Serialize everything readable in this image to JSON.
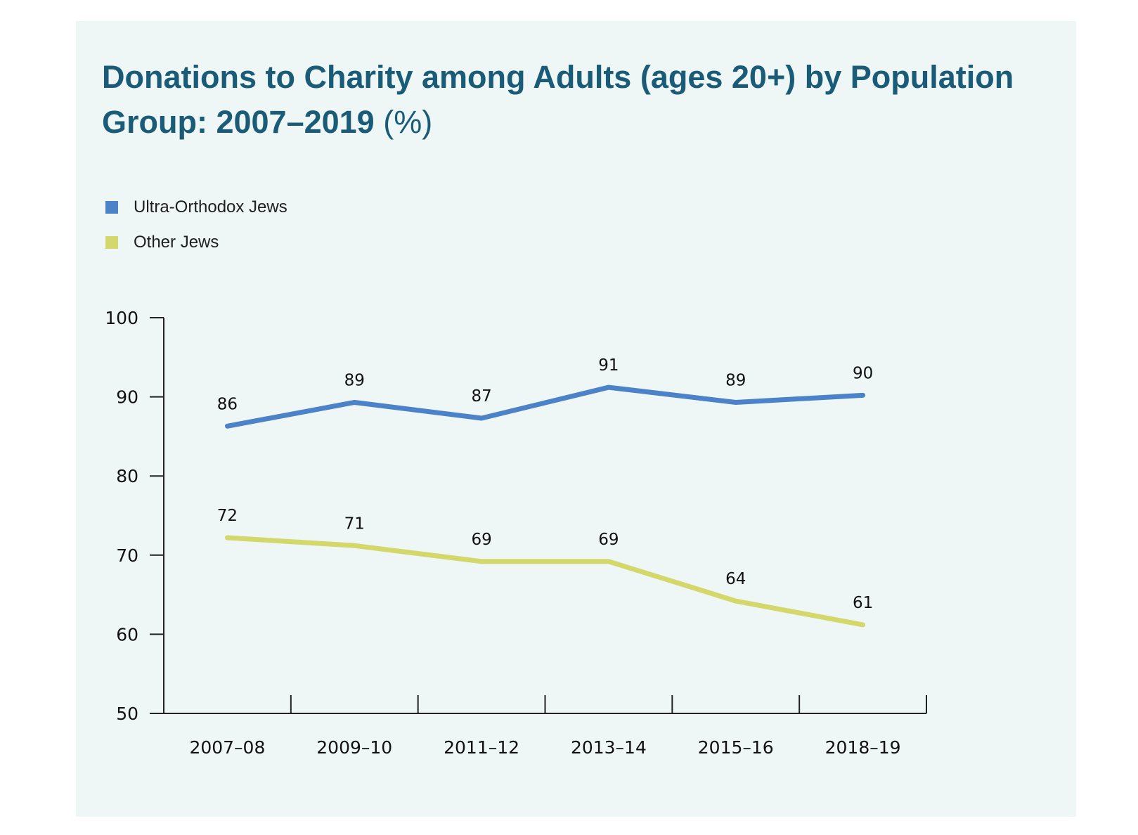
{
  "colors": {
    "background": "#eef7f5",
    "title": "#1a5b78",
    "ultra_orthodox": "#4b82c8",
    "other_jews": "#d4d76a",
    "axis": "#222222"
  },
  "chart_data": {
    "type": "line",
    "title": "Donations to Charity among Adults (ages 20+) by Population Group: 2007–2019",
    "title_unit": "(%)",
    "categories": [
      "2007–08",
      "2009–10",
      "2011–12",
      "2013–14",
      "2015–16",
      "2018–19"
    ],
    "series": [
      {
        "name": "Ultra-Orthodox Jews",
        "color": "#4b82c8",
        "values": [
          86.3,
          89.3,
          87.3,
          91.2,
          89.3,
          90.2
        ],
        "labels": [
          "86",
          "89",
          "87",
          "91",
          "89",
          "90"
        ]
      },
      {
        "name": "Other Jews",
        "color": "#d4d76a",
        "values": [
          72.2,
          71.2,
          69.2,
          69.2,
          64.2,
          61.2
        ],
        "labels": [
          "72",
          "71",
          "69",
          "69",
          "64",
          "61"
        ]
      }
    ],
    "ylim": [
      50,
      100
    ],
    "yticks": [
      50,
      60,
      70,
      80,
      90,
      100
    ],
    "grid": false,
    "legend_position": "top-left"
  }
}
